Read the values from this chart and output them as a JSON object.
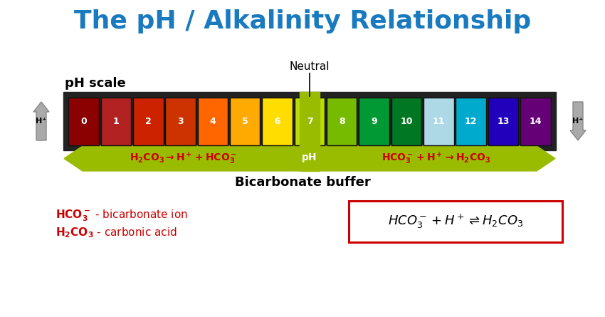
{
  "title": "The pH / Alkalinity Relationship",
  "title_color": "#1a7abf",
  "title_fontsize": 26,
  "background_color": "#ffffff",
  "ph_colors": [
    "#8B0000",
    "#B22222",
    "#CC2200",
    "#CC3300",
    "#FF6600",
    "#FFAA00",
    "#FFDD00",
    "#BBDD00",
    "#77BB00",
    "#009933",
    "#007722",
    "#ADD8E6",
    "#00AACC",
    "#2200BB",
    "#660077"
  ],
  "ph_labels": [
    "0",
    "1",
    "2",
    "3",
    "4",
    "5",
    "6",
    "7",
    "8",
    "9",
    "10",
    "11",
    "12",
    "13",
    "14"
  ],
  "arrow_color": "#99BB00",
  "ph_label_color": "white",
  "neutral_label": "Neutral",
  "ph_scale_label": "pH scale",
  "bicarbonate_buffer_label": "Bicarbonate buffer",
  "eq_color": "#CC0000",
  "box_border_color": "#CC0000",
  "dark_bar_color": "#222222",
  "grey_arrow_color": "#aaaaaa",
  "grey_arrow_edge": "#888888"
}
